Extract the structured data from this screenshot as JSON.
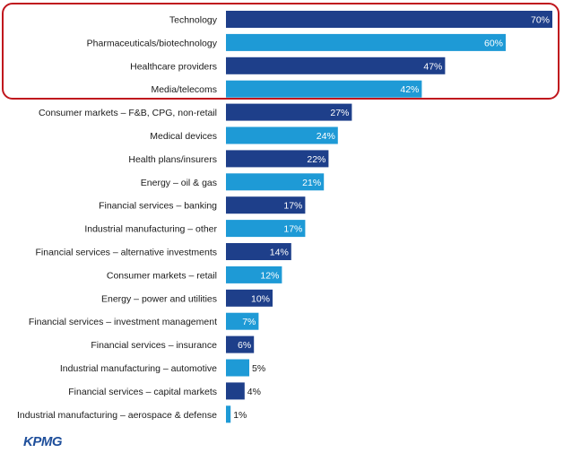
{
  "chart_data": {
    "type": "bar",
    "orientation": "horizontal",
    "categories": [
      "Technology",
      "Pharmaceuticals/biotechnology",
      "Healthcare providers",
      "Media/telecoms",
      "Consumer markets – F&B, CPG, non-retail",
      "Medical devices",
      "Health plans/insurers",
      "Energy – oil & gas",
      "Financial services – banking",
      "Industrial manufacturing – other",
      "Financial services –  alternative investments",
      "Consumer markets – retail",
      "Energy – power and utilities",
      "Financial services – investment management",
      "Financial services – insurance",
      "Industrial manufacturing – automotive",
      "Financial services – capital markets",
      "Industrial manufacturing – aerospace & defense"
    ],
    "values": [
      70,
      60,
      47,
      42,
      27,
      24,
      22,
      21,
      17,
      17,
      14,
      12,
      10,
      7,
      6,
      5,
      4,
      1
    ],
    "value_labels": [
      "70%",
      "60%",
      "47%",
      "42%",
      "27%",
      "24%",
      "22%",
      "21%",
      "17%",
      "17%",
      "14%",
      "12%",
      "10%",
      "7%",
      "6%",
      "5%",
      "4%",
      "1%"
    ],
    "bar_colors": [
      "#1e3f8a",
      "#1e9ad6",
      "#1e3f8a",
      "#1e9ad6",
      "#1e3f8a",
      "#1e9ad6",
      "#1e3f8a",
      "#1e9ad6",
      "#1e3f8a",
      "#1e9ad6",
      "#1e3f8a",
      "#1e9ad6",
      "#1e3f8a",
      "#1e9ad6",
      "#1e3f8a",
      "#1e9ad6",
      "#1e3f8a",
      "#1e9ad6"
    ],
    "xlim": [
      0,
      70
    ],
    "grid": false,
    "highlighted_categories": [
      "Technology",
      "Pharmaceuticals/biotechnology",
      "Healthcare providers",
      "Media/telecoms"
    ],
    "highlight_color": "#c0161d"
  },
  "logo_text": "KPMG"
}
